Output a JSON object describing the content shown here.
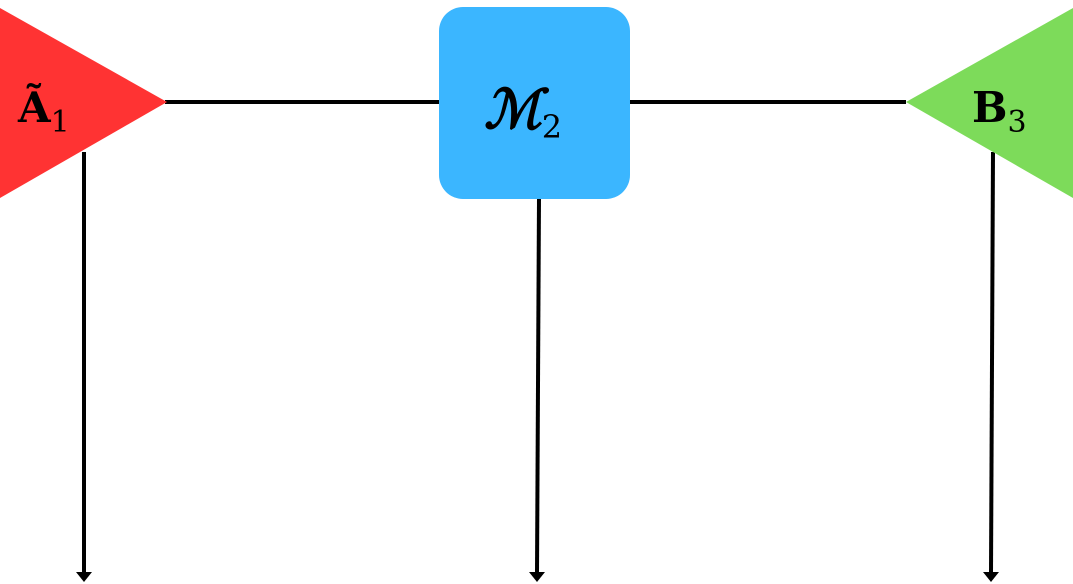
{
  "diagram": {
    "nodes": [
      {
        "id": "A1",
        "shape": "triangle-right",
        "color": "#ff3333",
        "label_main": "Ã",
        "label_sub": "1"
      },
      {
        "id": "M2",
        "shape": "rounded-square",
        "color": "#3bb6ff",
        "label_main": "ℳ",
        "label_sub": "2"
      },
      {
        "id": "B3",
        "shape": "triangle-left",
        "color": "#7ddb5a",
        "label_main": "B",
        "label_sub": "3"
      }
    ],
    "edges": [
      {
        "from": "A1",
        "to": "M2",
        "type": "line"
      },
      {
        "from": "M2",
        "to": "B3",
        "type": "line"
      },
      {
        "from": "A1",
        "to": "down",
        "type": "arrow"
      },
      {
        "from": "M2",
        "to": "down",
        "type": "arrow"
      },
      {
        "from": "B3",
        "to": "down",
        "type": "arrow"
      }
    ],
    "line_color": "#000000"
  }
}
